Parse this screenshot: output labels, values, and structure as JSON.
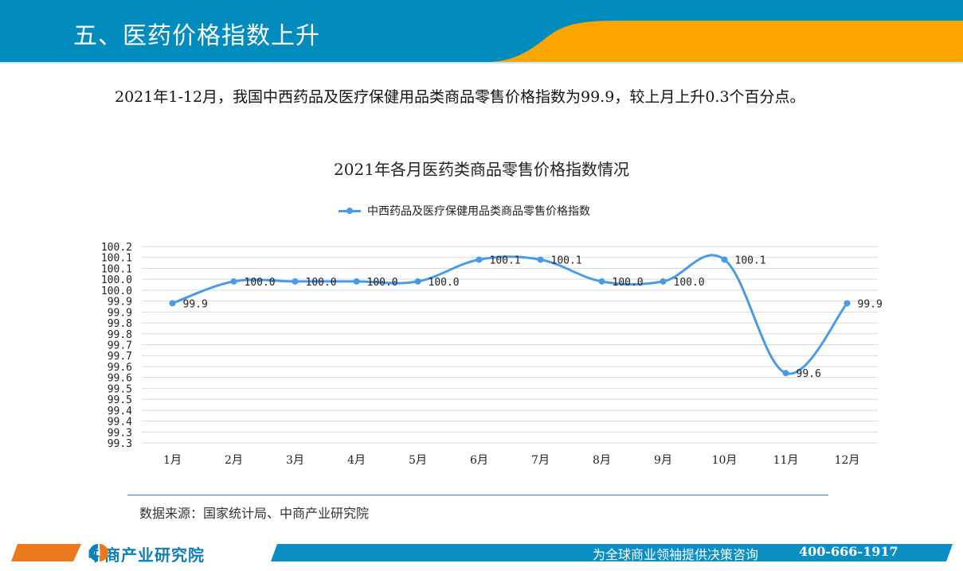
{
  "header": {
    "title": "五、医药价格指数上升",
    "colors": {
      "blue": "#028bbd",
      "orange": "#ffa500"
    }
  },
  "intro": {
    "text": "2021年1-12月，我国中西药品及医疗保健用品类商品零售价格指数为99.9，较上月上升0.3个百分点。"
  },
  "chart_data": {
    "type": "line",
    "title": "2021年各月医药类商品零售价格指数情况",
    "categories": [
      "1月",
      "2月",
      "3月",
      "4月",
      "5月",
      "6月",
      "7月",
      "8月",
      "9月",
      "10月",
      "11月",
      "12月"
    ],
    "series": [
      {
        "name": "中西药品及医疗保健用品类商品零售价格指数",
        "values": [
          99.9,
          100.0,
          100.0,
          100.0,
          100.0,
          100.1,
          100.1,
          100.0,
          100.0,
          100.1,
          99.6,
          99.9
        ],
        "plot_values": [
          99.94,
          100.04,
          100.04,
          100.04,
          100.04,
          100.14,
          100.14,
          100.04,
          100.04,
          100.14,
          99.62,
          99.94
        ],
        "labels": [
          "99.9",
          "100.0",
          "100.0",
          "100.0",
          "100.0",
          "100.1",
          "100.1",
          "100.0",
          "100.0",
          "100.1",
          "99.6",
          "99.9"
        ],
        "color": "#4a9be6",
        "smooth": true
      }
    ],
    "xlabel": "",
    "ylabel": "",
    "ylim": [
      99.3,
      100.2
    ],
    "ytick_step": 0.05,
    "ytick_labels": [
      "100.2",
      "100.1",
      "100.1",
      "100.0",
      "100.0",
      "99.9",
      "99.9",
      "99.8",
      "99.8",
      "99.7",
      "99.7",
      "99.6",
      "99.6",
      "99.5",
      "99.5",
      "99.4",
      "99.4",
      "99.3"
    ],
    "grid": true,
    "legend_position": "top"
  },
  "source": {
    "text": "数据来源：国家统计局、中商产业研究院"
  },
  "footer": {
    "logo_text": "中商产业研究院",
    "slogan": "为全球商业领袖提供决策咨询",
    "phone": "400-666-1917",
    "colors": {
      "orange": "#ec7a1c",
      "blue": "#0b8fc2"
    }
  }
}
